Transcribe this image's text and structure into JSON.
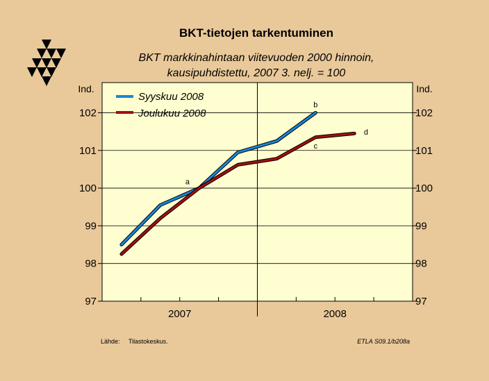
{
  "page": {
    "background": "#e9c99a",
    "plot_background": "#fffed0"
  },
  "logo": {
    "name": "etla-triangle-logo",
    "color": "#000000"
  },
  "chart_data": {
    "type": "line",
    "title": "BKT-tietojen tarkentuminen",
    "subtitle_lines": [
      "BKT markkinahintaan viitevuoden 2000 hinnoin,",
      "kausipuhdistettu, 2007 3. nelj. = 100"
    ],
    "ylabel_left": "Ind.",
    "ylabel_right": "Ind.",
    "ylim": [
      97,
      102.8
    ],
    "yticks": [
      97,
      98,
      99,
      100,
      101,
      102
    ],
    "x_quarter_range": [
      0.5,
      8.5
    ],
    "x_year_labels": [
      {
        "label": "2007",
        "center": 2.5
      },
      {
        "label": "2008",
        "center": 6.5
      }
    ],
    "x_year_divider": 4.5,
    "grid": true,
    "legend_position": "top-left",
    "series": [
      {
        "name": "Syyskuu 2008",
        "color": "#1a86d8",
        "x": [
          1,
          2,
          3,
          4,
          5,
          6,
          7
        ],
        "y": [
          98.5,
          99.55,
          100.0,
          100.95,
          101.25,
          102.0,
          null
        ]
      },
      {
        "name": "Joulukuu 2008",
        "color": "#a01010",
        "x": [
          1,
          2,
          3,
          4,
          5,
          6,
          7
        ],
        "y": [
          98.25,
          99.2,
          100.0,
          100.62,
          100.78,
          101.35,
          101.45
        ]
      }
    ],
    "annotations": [
      {
        "text": "a",
        "x": 2.7,
        "y": 100.1
      },
      {
        "text": "b",
        "x": 6.0,
        "y": 102.15
      },
      {
        "text": "c",
        "x": 6.0,
        "y": 101.05
      },
      {
        "text": "d",
        "x": 7.3,
        "y": 101.42
      }
    ]
  },
  "footer": {
    "source_label": "Lähde:",
    "source_value": "Tilastokeskus.",
    "code": "ETLA S09.1/b208a"
  }
}
